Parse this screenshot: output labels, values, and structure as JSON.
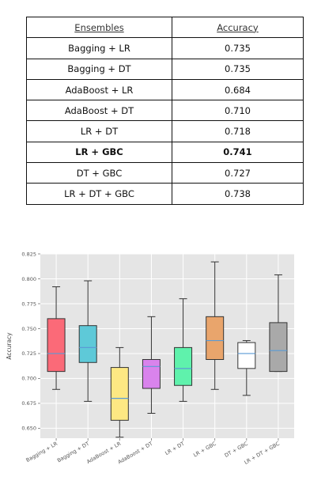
{
  "table": {
    "headers": [
      "Ensembles",
      "Accuracy"
    ],
    "rows": [
      {
        "name": "Bagging + LR",
        "value": "0.735",
        "bold": false
      },
      {
        "name": "Bagging + DT",
        "value": "0.735",
        "bold": false
      },
      {
        "name": "AdaBoost + LR",
        "value": "0.684",
        "bold": false
      },
      {
        "name": "AdaBoost + DT",
        "value": "0.710",
        "bold": false
      },
      {
        "name": "LR + DT",
        "value": "0.718",
        "bold": false
      },
      {
        "name": "LR + GBC",
        "value": "0.741",
        "bold": true
      },
      {
        "name": "DT + GBC",
        "value": "0.727",
        "bold": false
      },
      {
        "name": "LR + DT + GBC",
        "value": "0.738",
        "bold": false
      }
    ]
  },
  "chart_data": {
    "type": "box",
    "title": "",
    "xlabel": "",
    "ylabel": "Accuracy",
    "ylim": [
      0.64,
      0.825
    ],
    "yticks": [
      0.65,
      0.675,
      0.7,
      0.725,
      0.75,
      0.775,
      0.8,
      0.825
    ],
    "ytick_labels": [
      "0.650",
      "0.675",
      "0.700",
      "0.725",
      "0.750",
      "0.775",
      "0.800",
      "0.825"
    ],
    "grid": true,
    "categories": [
      "Bagging + LR",
      "Bagging + DT",
      "AdaBoost + LR",
      "AdaBoost + DT",
      "LR + DT",
      "LR + GBC",
      "DT + GBC",
      "LR + DT + GBC"
    ],
    "boxes": [
      {
        "whisker_low": 0.689,
        "q1": 0.707,
        "median": 0.725,
        "q3": 0.76,
        "whisker_high": 0.792,
        "color": "#fb6a78"
      },
      {
        "whisker_low": 0.677,
        "q1": 0.716,
        "median": 0.731,
        "q3": 0.753,
        "whisker_high": 0.798,
        "color": "#5ec9d8"
      },
      {
        "whisker_low": 0.641,
        "q1": 0.658,
        "median": 0.68,
        "q3": 0.711,
        "whisker_high": 0.731,
        "color": "#fde883"
      },
      {
        "whisker_low": 0.665,
        "q1": 0.69,
        "median": 0.712,
        "q3": 0.719,
        "whisker_high": 0.762,
        "color": "#d983ec"
      },
      {
        "whisker_low": 0.677,
        "q1": 0.693,
        "median": 0.71,
        "q3": 0.731,
        "whisker_high": 0.78,
        "color": "#5ff2ac"
      },
      {
        "whisker_low": 0.689,
        "q1": 0.719,
        "median": 0.738,
        "q3": 0.762,
        "whisker_high": 0.817,
        "color": "#e9a56c"
      },
      {
        "whisker_low": 0.683,
        "q1": 0.71,
        "median": 0.725,
        "q3": 0.736,
        "whisker_high": 0.738,
        "color": "#ffffff"
      },
      {
        "whisker_low": 0.707,
        "q1": 0.707,
        "median": 0.728,
        "q3": 0.756,
        "whisker_high": 0.804,
        "color": "#a9a9a9"
      }
    ],
    "median_color": "#5b9bd5"
  }
}
